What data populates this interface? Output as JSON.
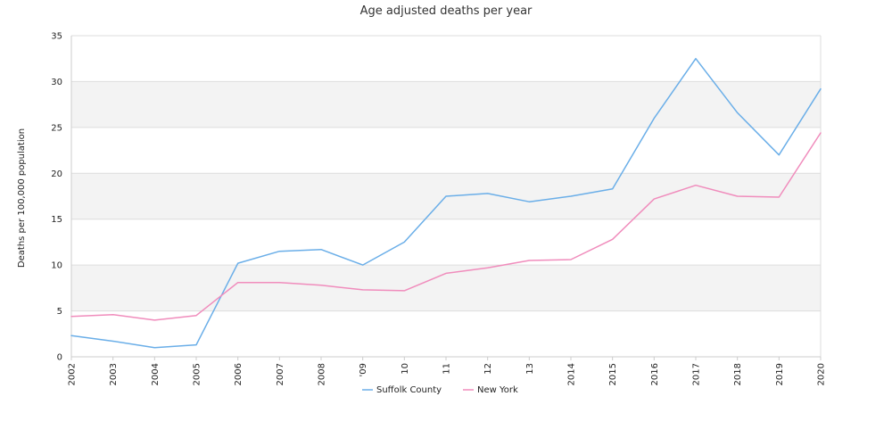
{
  "chart_data": {
    "type": "line",
    "title": "Age adjusted deaths per year",
    "xlabel": "",
    "ylabel": "Deaths per 100,000 population",
    "x": [
      "2002",
      "2003",
      "2004",
      "2005",
      "2006",
      "2007",
      "2008",
      "2009",
      "2010",
      "2011",
      "2012",
      "2013",
      "2014",
      "2015",
      "2016",
      "2017",
      "2018",
      "2019",
      "2020"
    ],
    "x_tick_labels": [
      "2002",
      "2003",
      "2004",
      "2005",
      "2006",
      "2007",
      "2008",
      "'09",
      "10",
      "11",
      "12",
      "13",
      "2014",
      "2015",
      "2016",
      "2017",
      "2018",
      "2019",
      "2020"
    ],
    "ylim": [
      0,
      35
    ],
    "yticks": [
      0,
      5,
      10,
      15,
      20,
      25,
      30,
      35
    ],
    "grid": true,
    "legend_position": "bottom",
    "series": [
      {
        "name": "Suffolk County",
        "color": "#6aaee8",
        "values": [
          2.3,
          1.7,
          1.0,
          1.3,
          10.2,
          11.5,
          11.7,
          10.0,
          12.5,
          17.5,
          17.8,
          16.9,
          17.5,
          18.3,
          26.0,
          32.5,
          26.6,
          22.0,
          29.2
        ]
      },
      {
        "name": "New York",
        "color": "#f08cbc",
        "values": [
          4.4,
          4.6,
          4.0,
          4.5,
          8.1,
          8.1,
          7.8,
          7.3,
          7.2,
          9.1,
          9.7,
          10.5,
          10.6,
          12.8,
          17.2,
          18.7,
          17.5,
          17.4,
          24.4
        ]
      }
    ],
    "band_colors": [
      "#ffffff",
      "#f3f3f3"
    ]
  }
}
